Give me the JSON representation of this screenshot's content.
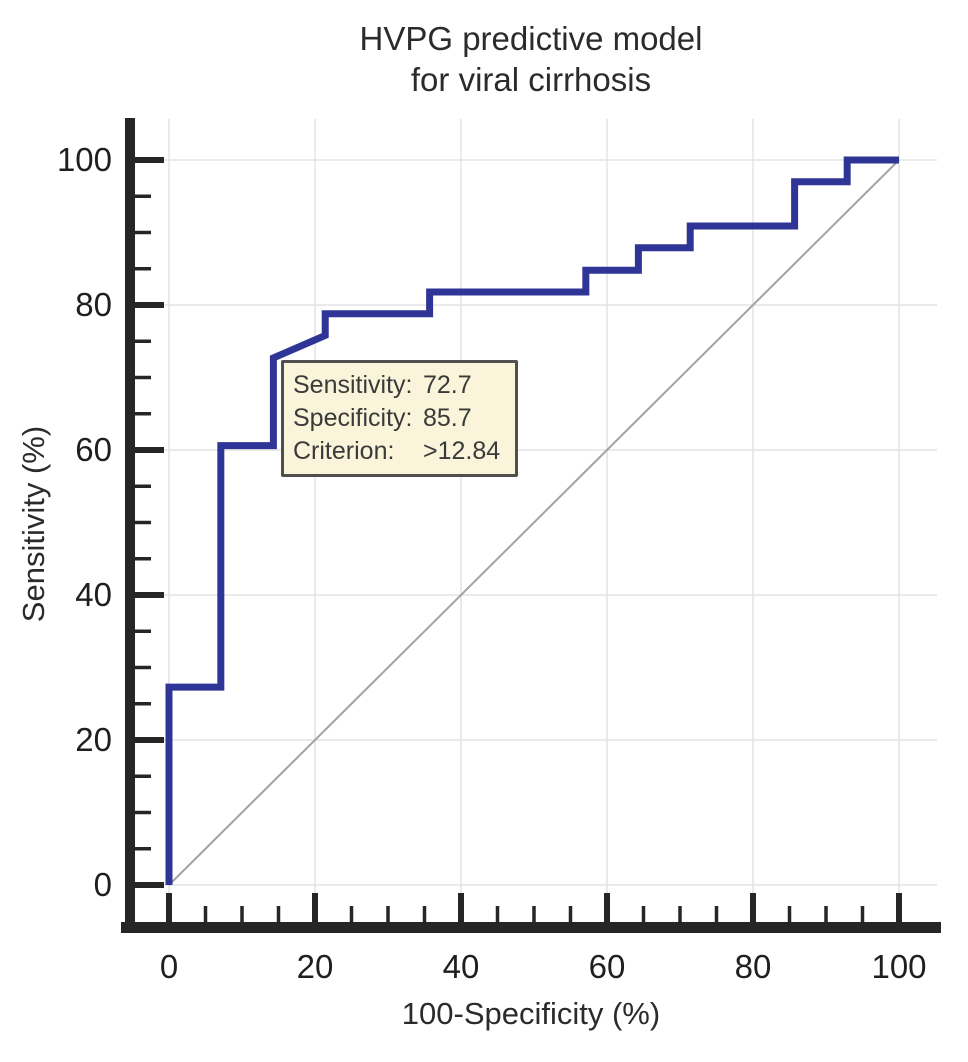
{
  "figure": {
    "title_line1": "HVPG predictive model",
    "title_line2": "for viral cirrhosis"
  },
  "chart_data": {
    "type": "line",
    "title": "HVPG predictive model for viral cirrhosis",
    "xlabel": "100-Specificity (%)",
    "ylabel": "Sensitivity (%)",
    "xlim": [
      0,
      100
    ],
    "ylim": [
      0,
      100
    ],
    "x_major_ticks": [
      0,
      20,
      40,
      60,
      80,
      100
    ],
    "y_major_ticks": [
      0,
      20,
      40,
      60,
      80,
      100
    ],
    "minor_tick_step": 5,
    "grid": true,
    "legend_position": "none",
    "series": [
      {
        "name": "reference-diagonal",
        "color": "#a3a3a3",
        "stroke_width": 2,
        "points": [
          [
            0,
            0
          ],
          [
            100,
            100
          ]
        ]
      },
      {
        "name": "roc-curve",
        "color": "#2f3597",
        "stroke_width": 7,
        "points": [
          [
            0,
            0
          ],
          [
            0,
            27.3
          ],
          [
            7.1,
            27.3
          ],
          [
            7.1,
            60.6
          ],
          [
            14.3,
            60.6
          ],
          [
            14.3,
            72.7
          ],
          [
            21.4,
            75.8
          ],
          [
            21.4,
            78.8
          ],
          [
            35.7,
            78.8
          ],
          [
            35.7,
            81.8
          ],
          [
            57.1,
            81.8
          ],
          [
            57.1,
            84.8
          ],
          [
            64.3,
            84.8
          ],
          [
            64.3,
            87.9
          ],
          [
            71.4,
            87.9
          ],
          [
            71.4,
            90.9
          ],
          [
            85.7,
            90.9
          ],
          [
            85.7,
            97.0
          ],
          [
            92.9,
            97.0
          ],
          [
            92.9,
            100
          ],
          [
            100,
            100
          ]
        ]
      }
    ],
    "annotation": {
      "rows": [
        {
          "label": "Sensitivity:",
          "value": "72.7"
        },
        {
          "label": "Specificity:",
          "value": "85.7"
        },
        {
          "label": "Criterion:",
          "value": ">12.84"
        }
      ]
    }
  },
  "colors": {
    "curve": "#2f3597",
    "diagonal": "#a3a3a3",
    "grid": "#e4e4e4",
    "axis": "#262626",
    "tick_label": "#1f1f1f",
    "annotation_bg": "#faf5da",
    "annotation_border": "#4f4f4f"
  }
}
